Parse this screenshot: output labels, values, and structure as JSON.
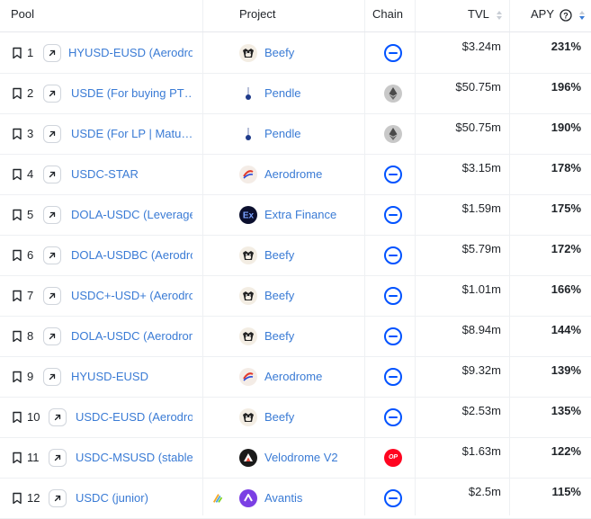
{
  "header": {
    "pool": "Pool",
    "project": "Project",
    "chain": "Chain",
    "tvl": "TVL",
    "apy": "APY"
  },
  "colors": {
    "link": "#3a7bd5",
    "base_chain": "#0052ff",
    "optimism_chain": "#ff0420"
  },
  "rows": [
    {
      "rank": "1",
      "pool": "HYUSD-EUSD (Aerodrome",
      "project": "Beefy",
      "project_icon": "beefy-cow-logo",
      "chain": "base-icon",
      "tvl": "$3.24m",
      "apy": "231%"
    },
    {
      "rank": "2",
      "pool": "USDE (For buying PT…",
      "project": "Pendle",
      "project_icon": "pendle-logo",
      "chain": "ethereum-icon",
      "tvl": "$50.75m",
      "apy": "196%"
    },
    {
      "rank": "3",
      "pool": "USDE (For LP | Matu…",
      "project": "Pendle",
      "project_icon": "pendle-logo",
      "chain": "ethereum-icon",
      "tvl": "$50.75m",
      "apy": "190%"
    },
    {
      "rank": "4",
      "pool": "USDC-STAR",
      "project": "Aerodrome",
      "project_icon": "aerodrome-logo",
      "chain": "base-icon",
      "tvl": "$3.15m",
      "apy": "178%"
    },
    {
      "rank": "5",
      "pool": "DOLA-USDC (Leverage",
      "project": "Extra Finance",
      "project_icon": "extra-finance-logo",
      "chain": "base-icon",
      "tvl": "$1.59m",
      "apy": "175%"
    },
    {
      "rank": "6",
      "pool": "DOLA-USDBC (Aerodrome",
      "project": "Beefy",
      "project_icon": "beefy-cow-logo",
      "chain": "base-icon",
      "tvl": "$5.79m",
      "apy": "172%"
    },
    {
      "rank": "7",
      "pool": "USDC+-USD+ (Aerodrome",
      "project": "Beefy",
      "project_icon": "beefy-cow-logo",
      "chain": "base-icon",
      "tvl": "$1.01m",
      "apy": "166%"
    },
    {
      "rank": "8",
      "pool": "DOLA-USDC (Aerodrome",
      "project": "Beefy",
      "project_icon": "beefy-cow-logo",
      "chain": "base-icon",
      "tvl": "$8.94m",
      "apy": "144%"
    },
    {
      "rank": "9",
      "pool": "HYUSD-EUSD",
      "project": "Aerodrome",
      "project_icon": "aerodrome-logo",
      "chain": "base-icon",
      "tvl": "$9.32m",
      "apy": "139%"
    },
    {
      "rank": "10",
      "pool": "USDC-EUSD (Aerodrome",
      "project": "Beefy",
      "project_icon": "beefy-cow-logo",
      "chain": "base-icon",
      "tvl": "$2.53m",
      "apy": "135%"
    },
    {
      "rank": "11",
      "pool": "USDC-MSUSD (stable",
      "project": "Velodrome V2",
      "project_icon": "velodrome-logo",
      "chain": "optimism-icon",
      "chain_text": "OP",
      "tvl": "$1.63m",
      "apy": "122%"
    },
    {
      "rank": "12",
      "pool": "USDC (junior)",
      "project": "Avantis",
      "project_icon": "avantis-logo",
      "chain": "base-icon",
      "tvl": "$2.5m",
      "apy": "115%",
      "rewards_icon": "rainbow-icon"
    }
  ]
}
